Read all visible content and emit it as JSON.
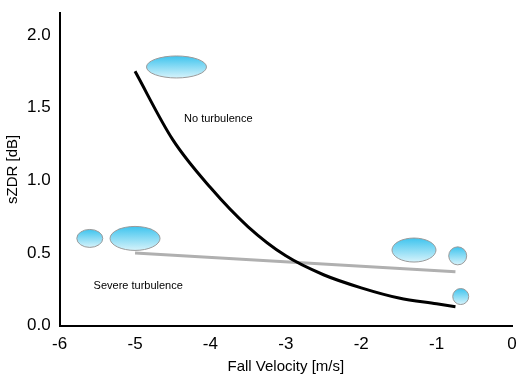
{
  "chart_data": {
    "type": "line",
    "x_label": "Fall Velocity [m/s]",
    "y_label": "sZDR [dB]",
    "series": [
      {
        "name": "No turbulence",
        "color": "#000000",
        "x": [
          -5,
          -4.5,
          -4,
          -3.5,
          -3,
          -2.5,
          -2,
          -1.5,
          -1,
          -0.75
        ],
        "values": [
          1.75,
          1.28,
          0.95,
          0.68,
          0.48,
          0.35,
          0.26,
          0.19,
          0.15,
          0.13
        ]
      },
      {
        "name": "Severe turbulence",
        "color": "#b0b0b0",
        "x": [
          -5,
          -0.75
        ],
        "values": [
          0.5,
          0.37
        ]
      }
    ],
    "xlim": [
      -6,
      0
    ],
    "xticks": [
      -6,
      -5,
      -4,
      -3,
      -2,
      -1,
      0
    ],
    "ylim": [
      0,
      2.15
    ],
    "yticks": [
      {
        "value": 0,
        "label": "0.0"
      },
      0.5,
      {
        "value": 1,
        "label": "1.0"
      },
      1.5,
      {
        "value": 2,
        "label": "2.0"
      }
    ],
    "grid": false
  }
}
